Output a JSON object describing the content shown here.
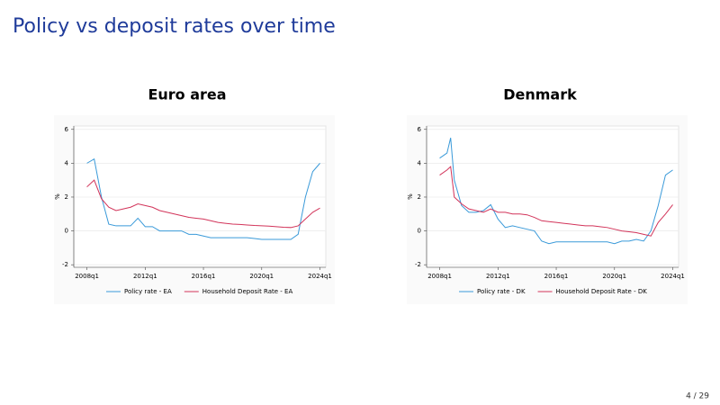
{
  "title": "Policy vs deposit rates over time",
  "page_number": "4 / 29",
  "chart_data": [
    {
      "type": "line",
      "title": "Euro area",
      "y_label": "%",
      "x": [
        2008,
        2008.5,
        2009,
        2009.5,
        2010,
        2010.5,
        2011,
        2011.5,
        2012,
        2012.5,
        2013,
        2013.5,
        2014,
        2014.5,
        2015,
        2015.5,
        2016,
        2016.5,
        2017,
        2017.5,
        2018,
        2018.5,
        2019,
        2019.5,
        2020,
        2020.5,
        2021,
        2021.5,
        2022,
        2022.5,
        2023,
        2023.5,
        2024
      ],
      "series": [
        {
          "name": "Policy rate - EA",
          "color": "#3a9ad9",
          "values": [
            4.0,
            4.25,
            2.0,
            0.4,
            0.3,
            0.3,
            0.3,
            0.75,
            0.25,
            0.25,
            0.0,
            0.0,
            0.0,
            0.0,
            -0.2,
            -0.2,
            -0.3,
            -0.4,
            -0.4,
            -0.4,
            -0.4,
            -0.4,
            -0.4,
            -0.45,
            -0.5,
            -0.5,
            -0.5,
            -0.5,
            -0.5,
            -0.2,
            2.0,
            3.5,
            4.0
          ]
        },
        {
          "name": "Household Deposit Rate - EA",
          "color": "#d2345a",
          "values": [
            2.6,
            3.0,
            1.9,
            1.4,
            1.2,
            1.3,
            1.4,
            1.6,
            1.5,
            1.4,
            1.2,
            1.1,
            1.0,
            0.9,
            0.8,
            0.75,
            0.7,
            0.6,
            0.5,
            0.45,
            0.4,
            0.38,
            0.35,
            0.32,
            0.3,
            0.28,
            0.25,
            0.22,
            0.2,
            0.3,
            0.7,
            1.1,
            1.35
          ]
        }
      ],
      "xlim": [
        2007.1,
        2024.4
      ],
      "xticks": [
        {
          "value": 2008,
          "label": "2008q1"
        },
        {
          "value": 2012,
          "label": "2012q1"
        },
        {
          "value": 2016,
          "label": "2016q1"
        },
        {
          "value": 2020,
          "label": "2020q1"
        },
        {
          "value": 2024,
          "label": "2024q1"
        }
      ],
      "ylim": [
        -2.15,
        6.2
      ],
      "yticks": [
        -2,
        0,
        2,
        4,
        6
      ],
      "grid": true
    },
    {
      "type": "line",
      "title": "Denmark",
      "y_label": "%",
      "x": [
        2008,
        2008.5,
        2008.75,
        2009,
        2009.5,
        2010,
        2010.5,
        2011,
        2011.5,
        2012,
        2012.5,
        2013,
        2013.5,
        2014,
        2014.5,
        2015,
        2015.5,
        2016,
        2016.5,
        2017,
        2017.5,
        2018,
        2018.5,
        2019,
        2019.5,
        2020,
        2020.5,
        2021,
        2021.5,
        2022,
        2022.5,
        2023,
        2023.5,
        2024
      ],
      "series": [
        {
          "name": "Policy rate - DK",
          "color": "#3a9ad9",
          "values": [
            4.3,
            4.6,
            5.5,
            3.0,
            1.5,
            1.1,
            1.1,
            1.2,
            1.55,
            0.7,
            0.2,
            0.3,
            0.2,
            0.1,
            0.0,
            -0.6,
            -0.75,
            -0.65,
            -0.65,
            -0.65,
            -0.65,
            -0.65,
            -0.65,
            -0.65,
            -0.65,
            -0.75,
            -0.6,
            -0.6,
            -0.5,
            -0.6,
            0.0,
            1.5,
            3.3,
            3.6
          ]
        },
        {
          "name": "Household Deposit Rate - DK",
          "color": "#d2345a",
          "values": [
            3.3,
            3.6,
            3.8,
            2.0,
            1.6,
            1.3,
            1.2,
            1.1,
            1.3,
            1.1,
            1.1,
            1.0,
            1.0,
            0.95,
            0.8,
            0.6,
            0.55,
            0.5,
            0.45,
            0.4,
            0.35,
            0.3,
            0.3,
            0.25,
            0.2,
            0.1,
            0.0,
            -0.05,
            -0.1,
            -0.2,
            -0.3,
            0.5,
            1.0,
            1.55
          ]
        }
      ],
      "xlim": [
        2007.1,
        2024.4
      ],
      "xticks": [
        {
          "value": 2008,
          "label": "2008q1"
        },
        {
          "value": 2012,
          "label": "2012q1"
        },
        {
          "value": 2016,
          "label": "2016q1"
        },
        {
          "value": 2020,
          "label": "2020q1"
        },
        {
          "value": 2024,
          "label": "2024q1"
        }
      ],
      "ylim": [
        -2.15,
        6.2
      ],
      "yticks": [
        -2,
        0,
        2,
        4,
        6
      ],
      "grid": true
    }
  ]
}
